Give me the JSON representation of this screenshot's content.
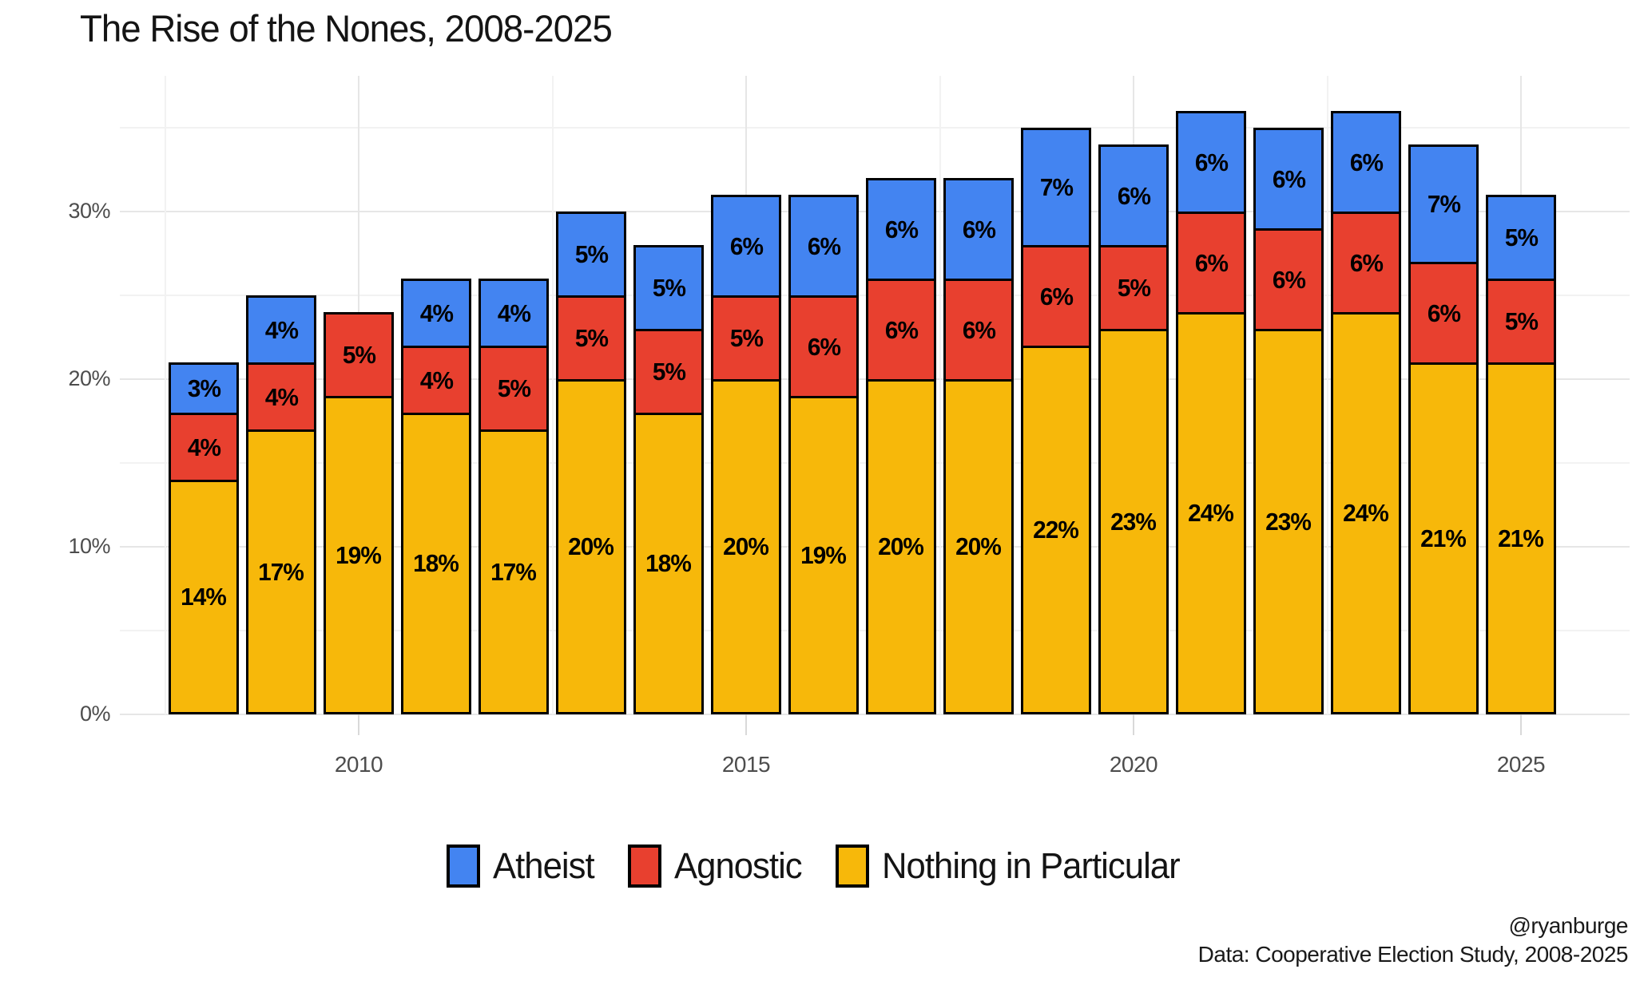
{
  "title": "The Rise of the Nones, 2008-2025",
  "chart_data": {
    "type": "bar",
    "stacked": true,
    "title": "The Rise of the Nones, 2008-2025",
    "categories": [
      2008,
      2009,
      2010,
      2011,
      2012,
      2013,
      2014,
      2015,
      2016,
      2017,
      2018,
      2019,
      2020,
      2021,
      2022,
      2023,
      2024,
      2025
    ],
    "series": [
      {
        "name": "Atheist",
        "color": "#4384F1",
        "values": [
          3,
          4,
          null,
          4,
          4,
          5,
          5,
          6,
          6,
          6,
          6,
          7,
          6,
          6,
          6,
          6,
          7,
          5
        ]
      },
      {
        "name": "Agnostic",
        "color": "#E8402F",
        "values": [
          4,
          4,
          5,
          4,
          5,
          5,
          5,
          5,
          6,
          6,
          6,
          6,
          5,
          6,
          6,
          6,
          6,
          5
        ]
      },
      {
        "name": "Nothing in Particular",
        "color": "#F7B80A",
        "values": [
          14,
          17,
          19,
          18,
          17,
          20,
          18,
          20,
          19,
          20,
          20,
          22,
          23,
          24,
          23,
          24,
          21,
          21
        ]
      }
    ],
    "stack_order_bottom_to_top": [
      "Nothing in Particular",
      "Agnostic",
      "Atheist"
    ],
    "value_label_format": "{v}%",
    "xlabel": "",
    "ylabel": "",
    "x_ticks": [
      {
        "label": "2010",
        "year": 2010
      },
      {
        "label": "2015",
        "year": 2015
      },
      {
        "label": "2020",
        "year": 2020
      },
      {
        "label": "2025",
        "year": 2025
      }
    ],
    "x_minor_years": [
      2007.5,
      2012.5,
      2017.5,
      2022.5
    ],
    "y_ticks": [
      {
        "label": "0%",
        "value": 0
      },
      {
        "label": "10%",
        "value": 10
      },
      {
        "label": "20%",
        "value": 20
      },
      {
        "label": "30%",
        "value": 30
      }
    ],
    "y_minor_values": [
      5,
      15,
      25,
      35
    ],
    "ylim": [
      0,
      38
    ],
    "grid": true,
    "legend_position": "bottom"
  },
  "legend": {
    "items": [
      {
        "label": "Atheist",
        "color": "#4384F1"
      },
      {
        "label": "Agnostic",
        "color": "#E8402F"
      },
      {
        "label": "Nothing in Particular",
        "color": "#F7B80A"
      }
    ]
  },
  "caption": {
    "line1": "@ryanburge",
    "line2": "Data: Cooperative Election Study, 2008-2025"
  },
  "colors": {
    "background": "#ffffff",
    "bar_border": "#000000",
    "grid_major": "#e6e6e6",
    "grid_minor": "#f2f2f2",
    "axis_text": "#4d4d4d",
    "atheist_blue": "#4384F1",
    "agnostic_red": "#E8402F",
    "nothing_in_particular_yellow": "#F7B80A"
  }
}
